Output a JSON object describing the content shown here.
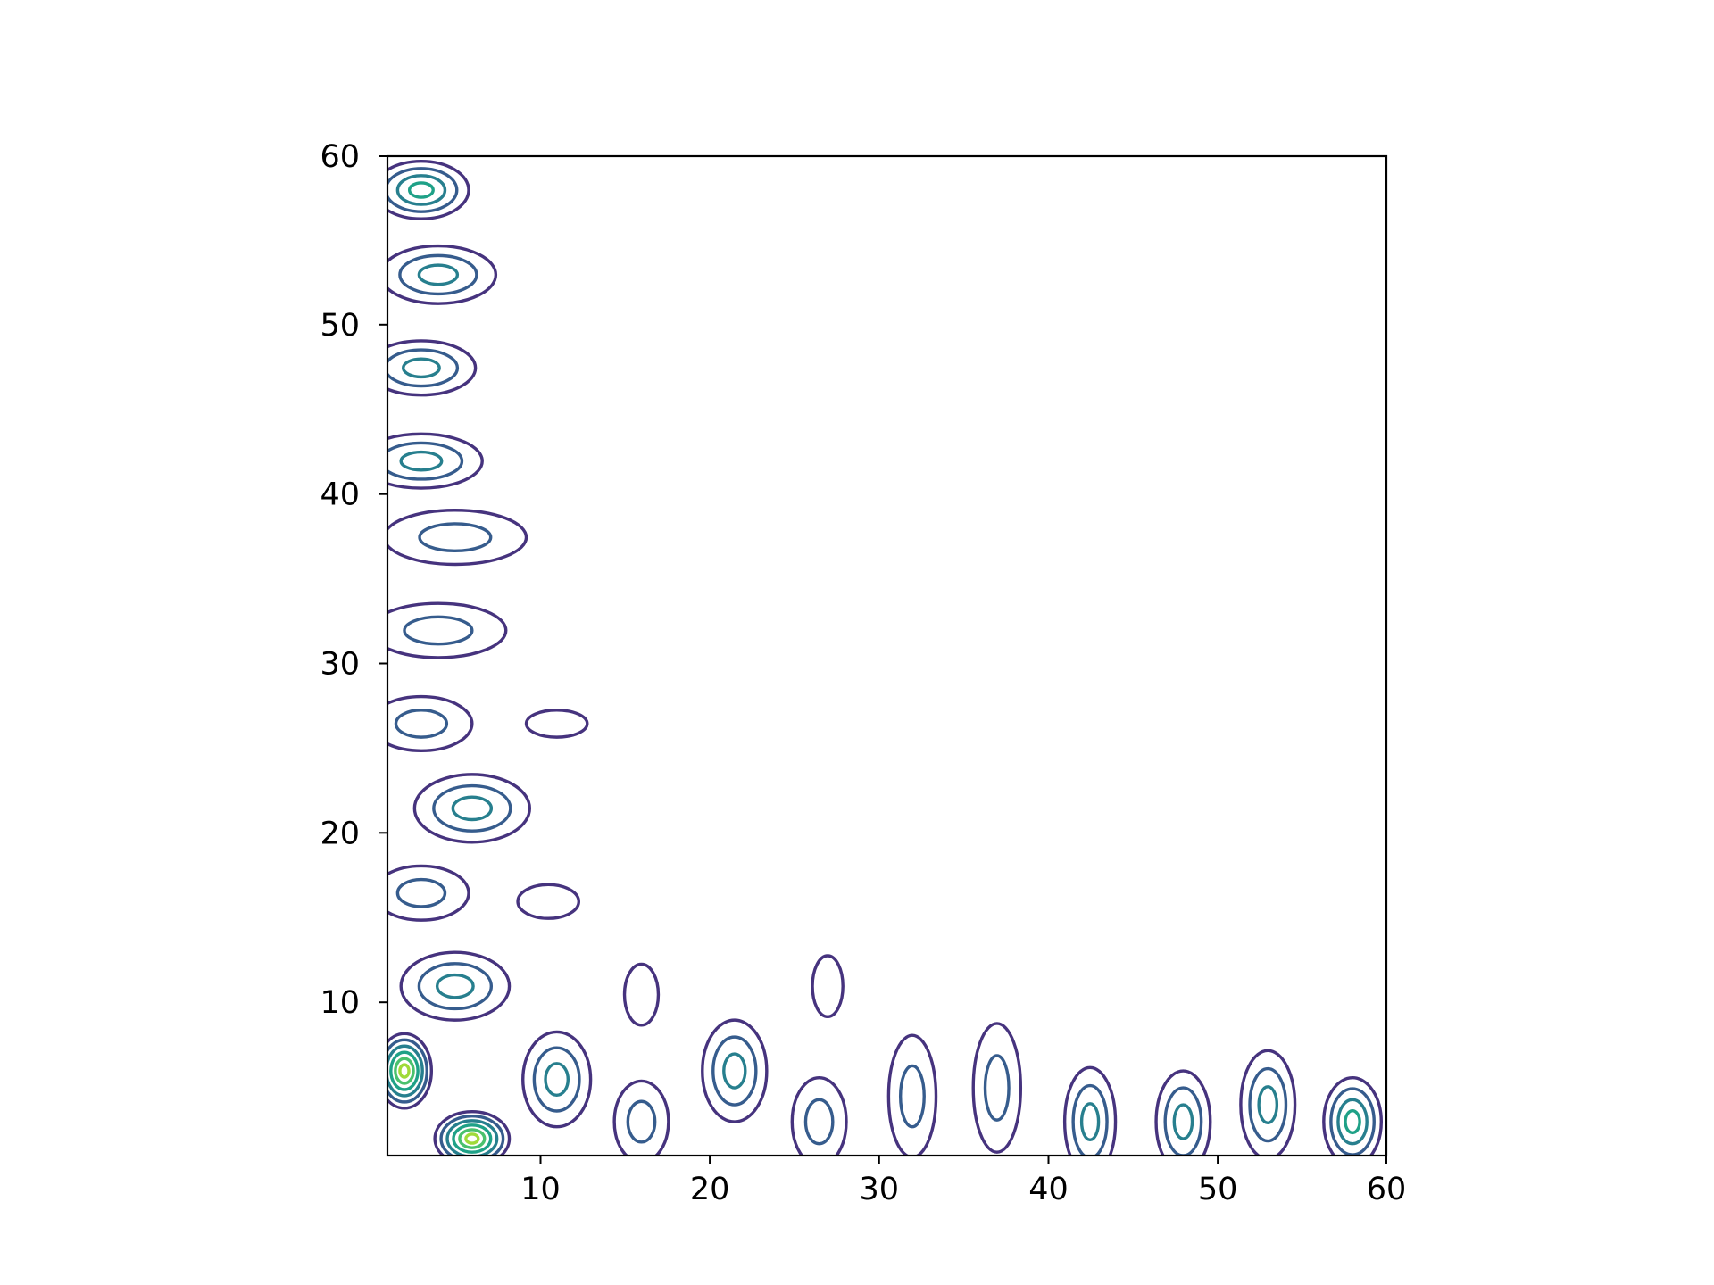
{
  "chart_data": {
    "type": "contour",
    "title": "",
    "xlabel": "",
    "ylabel": "",
    "xlim": [
      1,
      60
    ],
    "ylim": [
      1,
      60
    ],
    "x_ticks": [
      10,
      20,
      30,
      40,
      50,
      60
    ],
    "y_ticks": [
      10,
      20,
      30,
      40,
      50,
      60
    ],
    "x_tick_labels": [
      "10",
      "20",
      "30",
      "40",
      "50",
      "60"
    ],
    "y_tick_labels": [
      "10",
      "20",
      "30",
      "40",
      "50",
      "60"
    ],
    "grid": false,
    "colormap": "viridis",
    "level_colors": [
      "#46337e",
      "#365c8d",
      "#277f8e",
      "#1fa187",
      "#4ac16d",
      "#a0da39"
    ],
    "peaks": [
      {
        "x": 2,
        "y": 6,
        "sx": 1.6,
        "sy": 2.2,
        "level": 6
      },
      {
        "x": 6,
        "y": 2,
        "sx": 2.2,
        "sy": 1.6,
        "level": 6
      },
      {
        "x": 5,
        "y": 11,
        "sx": 3.2,
        "sy": 2.0,
        "level": 3
      },
      {
        "x": 3,
        "y": 16.5,
        "sx": 2.8,
        "sy": 1.6,
        "level": 2
      },
      {
        "x": 6,
        "y": 21.5,
        "sx": 3.4,
        "sy": 2.0,
        "level": 3
      },
      {
        "x": 3,
        "y": 26.5,
        "sx": 3.0,
        "sy": 1.6,
        "level": 2
      },
      {
        "x": 11,
        "y": 26.5,
        "sx": 1.8,
        "sy": 0.8,
        "level": 1
      },
      {
        "x": 10.5,
        "y": 16,
        "sx": 1.8,
        "sy": 1.0,
        "level": 1
      },
      {
        "x": 4,
        "y": 32,
        "sx": 4.0,
        "sy": 1.6,
        "level": 2
      },
      {
        "x": 5,
        "y": 37.5,
        "sx": 4.2,
        "sy": 1.6,
        "level": 2
      },
      {
        "x": 3,
        "y": 42,
        "sx": 3.6,
        "sy": 1.6,
        "level": 3
      },
      {
        "x": 3,
        "y": 47.5,
        "sx": 3.2,
        "sy": 1.6,
        "level": 3
      },
      {
        "x": 4,
        "y": 53,
        "sx": 3.4,
        "sy": 1.7,
        "level": 3
      },
      {
        "x": 3,
        "y": 58,
        "sx": 2.8,
        "sy": 1.7,
        "level": 4
      },
      {
        "x": 11,
        "y": 5.5,
        "sx": 2.0,
        "sy": 2.8,
        "level": 3
      },
      {
        "x": 16,
        "y": 3,
        "sx": 1.6,
        "sy": 2.4,
        "level": 2
      },
      {
        "x": 16,
        "y": 10.5,
        "sx": 1.0,
        "sy": 1.8,
        "level": 1
      },
      {
        "x": 21.5,
        "y": 6,
        "sx": 1.9,
        "sy": 3.0,
        "level": 3
      },
      {
        "x": 26.5,
        "y": 3,
        "sx": 1.6,
        "sy": 2.6,
        "level": 2
      },
      {
        "x": 27,
        "y": 11,
        "sx": 0.9,
        "sy": 1.8,
        "level": 1
      },
      {
        "x": 32,
        "y": 4.5,
        "sx": 1.4,
        "sy": 3.6,
        "level": 2
      },
      {
        "x": 37,
        "y": 5,
        "sx": 1.4,
        "sy": 3.8,
        "level": 2
      },
      {
        "x": 42.5,
        "y": 3,
        "sx": 1.5,
        "sy": 3.2,
        "level": 3
      },
      {
        "x": 48,
        "y": 3,
        "sx": 1.6,
        "sy": 3.0,
        "level": 3
      },
      {
        "x": 53,
        "y": 4,
        "sx": 1.6,
        "sy": 3.2,
        "level": 3
      },
      {
        "x": 58,
        "y": 3,
        "sx": 1.7,
        "sy": 2.6,
        "level": 4
      }
    ]
  }
}
